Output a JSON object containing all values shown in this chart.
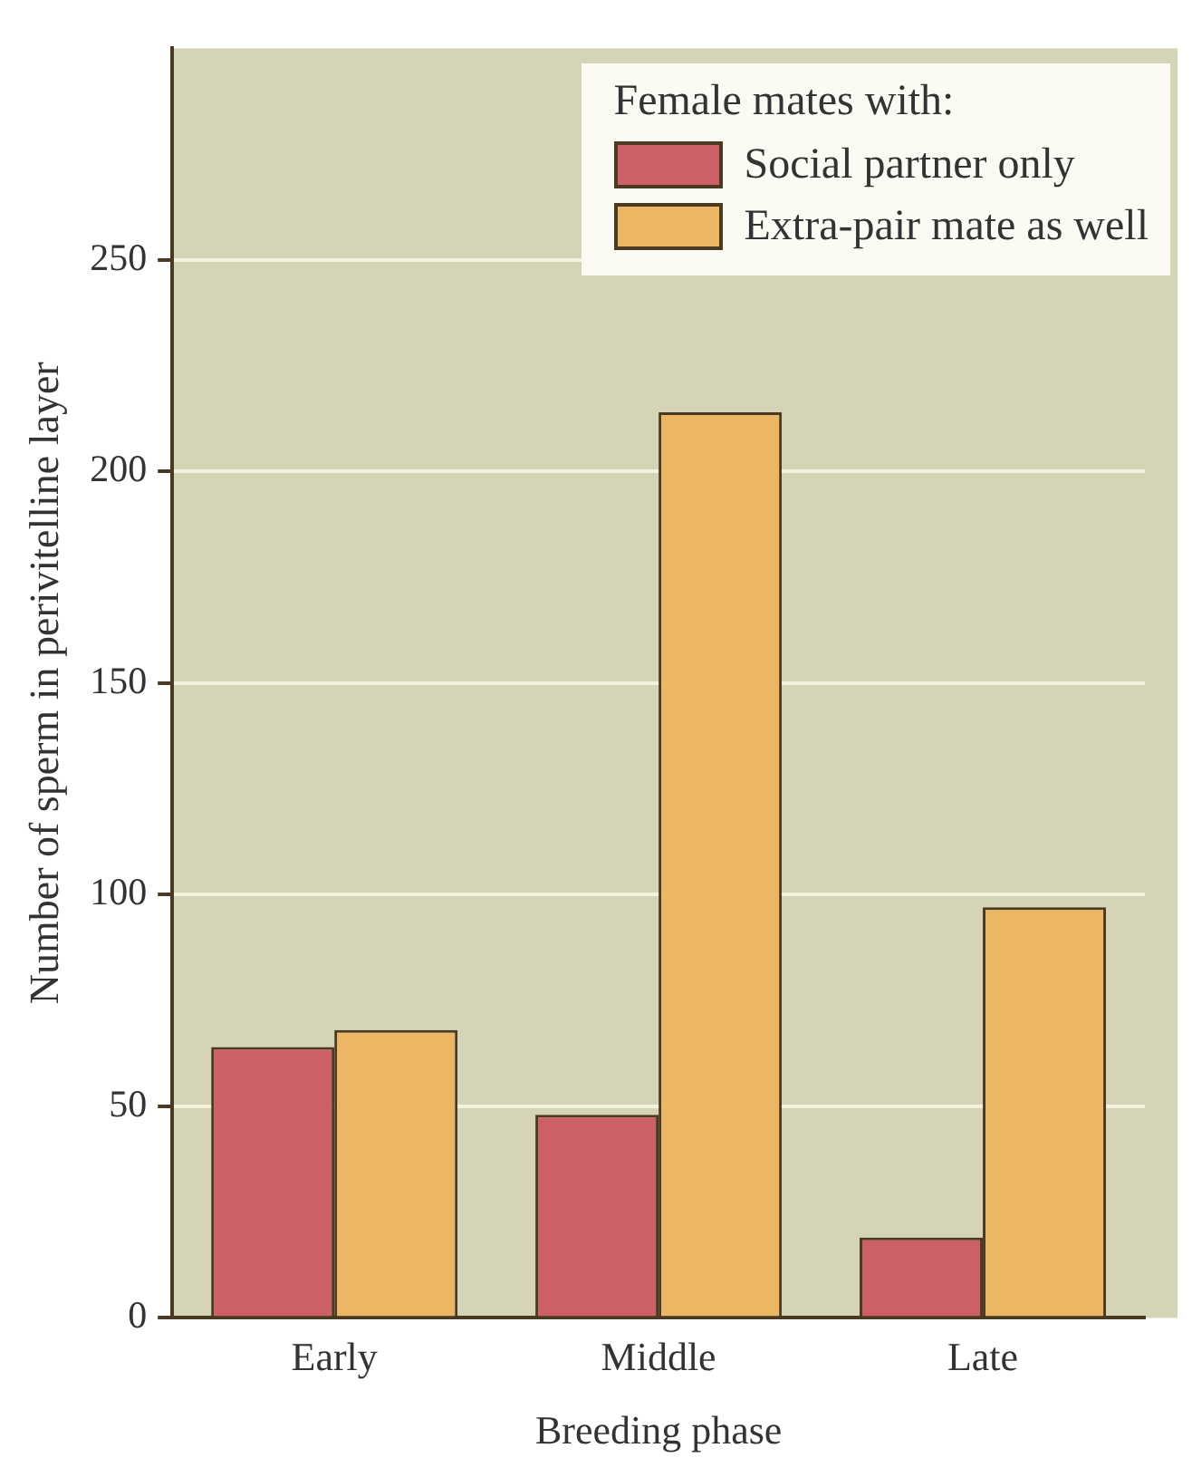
{
  "chart_data": {
    "type": "bar",
    "xlabel": "Breeding phase",
    "ylabel": "Number of sperm in perivitelline layer",
    "legend_title": "Female mates with:",
    "categories": [
      "Early",
      "Middle",
      "Late"
    ],
    "series": [
      {
        "name": "Social partner only",
        "color": "#cc6066",
        "values": [
          64,
          48,
          19
        ]
      },
      {
        "name": "Extra-pair mate as well",
        "color": "#ecb765",
        "values": [
          68,
          214,
          97
        ]
      }
    ],
    "ylim": [
      0,
      300
    ],
    "yticks": [
      0,
      50,
      100,
      150,
      200,
      250
    ],
    "grid": "y",
    "legend": "top right"
  }
}
